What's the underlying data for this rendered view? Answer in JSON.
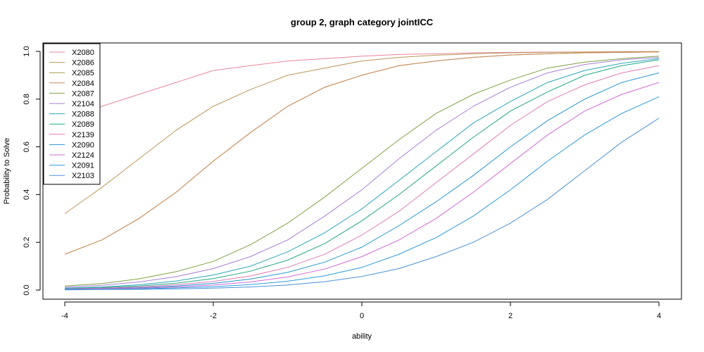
{
  "chart_data": {
    "type": "line",
    "title": "group 2, graph category jointICC",
    "xlabel": "ability",
    "ylabel": "Probability to Solve",
    "xlim": [
      -4,
      4
    ],
    "ylim": [
      0,
      1
    ],
    "xticks": [
      -4,
      -2,
      0,
      2,
      4
    ],
    "yticks": [
      0.0,
      0.2,
      0.4,
      0.6,
      0.8,
      1.0
    ],
    "xtick_labels": [
      "-4",
      "-2",
      "0",
      "2",
      "4"
    ],
    "ytick_labels": [
      "0.0",
      "0.2",
      "0.4",
      "0.6",
      "0.8",
      "1.0"
    ],
    "legend_position": "top-left",
    "grid": false,
    "x": [
      -4,
      -3.5,
      -3,
      -2.5,
      -2,
      -1.5,
      -1,
      -0.5,
      0,
      0.5,
      1,
      1.5,
      2,
      2.5,
      3,
      3.5,
      4
    ],
    "series": [
      {
        "name": "X2080",
        "color": "#E7869A",
        "values": [
          0.7,
          0.77,
          0.82,
          0.87,
          0.92,
          0.94,
          0.96,
          0.97,
          0.98,
          0.987,
          0.99,
          0.994,
          0.996,
          0.997,
          0.998,
          0.999,
          0.999
        ]
      },
      {
        "name": "X2086",
        "color": "#B9975A",
        "values": [
          0.32,
          0.43,
          0.55,
          0.67,
          0.77,
          0.84,
          0.9,
          0.93,
          0.96,
          0.975,
          0.984,
          0.99,
          0.994,
          0.996,
          0.997,
          0.998,
          0.999
        ]
      },
      {
        "name": "X2085",
        "color": "#A8994B",
        "values": [
          0.15,
          0.21,
          0.3,
          0.41,
          0.54,
          0.66,
          0.77,
          0.85,
          0.9,
          0.94,
          0.96,
          0.975,
          0.985,
          0.99,
          0.994,
          0.996,
          0.998
        ]
      },
      {
        "name": "X2084",
        "color": "#C98C5E",
        "values": [
          0.15,
          0.21,
          0.3,
          0.41,
          0.54,
          0.66,
          0.77,
          0.85,
          0.9,
          0.94,
          0.96,
          0.975,
          0.985,
          0.99,
          0.994,
          0.996,
          0.998
        ]
      },
      {
        "name": "X2087",
        "color": "#7FA145",
        "values": [
          0.017,
          0.027,
          0.047,
          0.077,
          0.12,
          0.19,
          0.28,
          0.39,
          0.51,
          0.63,
          0.74,
          0.82,
          0.88,
          0.93,
          0.955,
          0.97,
          0.98
        ]
      },
      {
        "name": "X2104",
        "color": "#A97FD6",
        "values": [
          0.012,
          0.02,
          0.034,
          0.056,
          0.09,
          0.14,
          0.21,
          0.31,
          0.42,
          0.55,
          0.67,
          0.77,
          0.85,
          0.91,
          0.945,
          0.965,
          0.975
        ]
      },
      {
        "name": "X2088",
        "color": "#2AA6B8",
        "values": [
          0.008,
          0.013,
          0.022,
          0.038,
          0.063,
          0.1,
          0.16,
          0.24,
          0.34,
          0.46,
          0.58,
          0.7,
          0.79,
          0.87,
          0.92,
          0.95,
          0.97
        ]
      },
      {
        "name": "X2089",
        "color": "#23A785",
        "values": [
          0.006,
          0.01,
          0.017,
          0.029,
          0.048,
          0.079,
          0.125,
          0.195,
          0.29,
          0.4,
          0.52,
          0.64,
          0.75,
          0.83,
          0.9,
          0.94,
          0.965
        ]
      },
      {
        "name": "X2139",
        "color": "#E07BB6",
        "values": [
          0.005,
          0.008,
          0.013,
          0.022,
          0.036,
          0.059,
          0.095,
          0.15,
          0.23,
          0.33,
          0.45,
          0.57,
          0.69,
          0.79,
          0.86,
          0.91,
          0.94
        ]
      },
      {
        "name": "X2090",
        "color": "#2596D2",
        "values": [
          0.004,
          0.006,
          0.01,
          0.017,
          0.028,
          0.046,
          0.074,
          0.117,
          0.18,
          0.27,
          0.37,
          0.48,
          0.6,
          0.71,
          0.8,
          0.87,
          0.91
        ]
      },
      {
        "name": "X2124",
        "color": "#D069D2",
        "values": [
          0.003,
          0.005,
          0.008,
          0.013,
          0.021,
          0.034,
          0.055,
          0.088,
          0.14,
          0.21,
          0.3,
          0.41,
          0.53,
          0.65,
          0.75,
          0.82,
          0.87
        ]
      },
      {
        "name": "X2091",
        "color": "#2C9BDD",
        "values": [
          0.002,
          0.003,
          0.005,
          0.009,
          0.014,
          0.023,
          0.037,
          0.06,
          0.095,
          0.15,
          0.22,
          0.31,
          0.42,
          0.54,
          0.65,
          0.74,
          0.81
        ]
      },
      {
        "name": "X2103",
        "color": "#4A92D8",
        "values": [
          0.001,
          0.002,
          0.003,
          0.005,
          0.008,
          0.013,
          0.021,
          0.035,
          0.057,
          0.09,
          0.14,
          0.2,
          0.28,
          0.38,
          0.5,
          0.62,
          0.72
        ]
      }
    ]
  }
}
